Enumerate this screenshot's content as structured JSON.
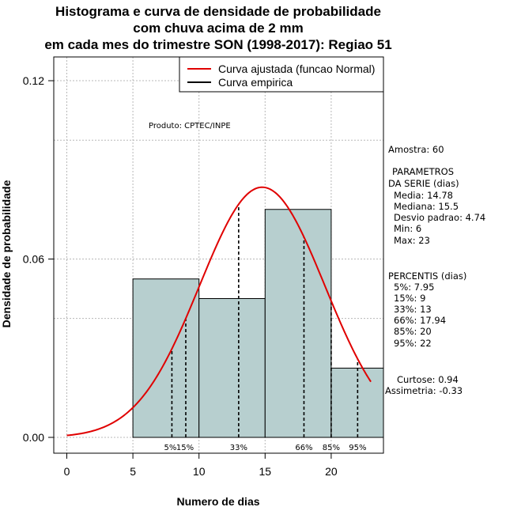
{
  "chart_data": {
    "type": "bar",
    "title_lines": [
      "Histograma e curva de densidade de probabilidade",
      "com chuva acima de 2 mm",
      "em cada mes do trimestre SON (1998-2017): Regiao 51"
    ],
    "xlabel": "Numero de dias",
    "ylabel": "Densidade de probabilidade",
    "xlim": [
      -1,
      24
    ],
    "ylim": [
      -0.005,
      0.13
    ],
    "xticks": [
      0,
      5,
      10,
      15,
      20
    ],
    "yticks": [
      0.0,
      0.06,
      0.12
    ],
    "ytick_labels": [
      "0.00",
      "0.06",
      "0.12"
    ],
    "grid_x": [
      0,
      5,
      10,
      15,
      20
    ],
    "grid_y": [
      0.0,
      0.04,
      0.06,
      0.1,
      0.12
    ],
    "bins": [
      {
        "from": 5,
        "to": 10,
        "density": 0.0533
      },
      {
        "from": 10,
        "to": 15,
        "density": 0.0467
      },
      {
        "from": 15,
        "to": 20,
        "density": 0.0767
      },
      {
        "from": 20,
        "to": 24,
        "density": 0.0233
      }
    ],
    "normal_fit": {
      "mean": 14.78,
      "sd": 4.74,
      "x_range": [
        0,
        23
      ]
    },
    "percentile_lines": [
      {
        "label": "5%",
        "x": 7.95
      },
      {
        "label": "15%",
        "x": 9
      },
      {
        "label": "33%",
        "x": 13
      },
      {
        "label": "66%",
        "x": 17.94
      },
      {
        "label": "85%",
        "x": 20
      },
      {
        "label": "95%",
        "x": 22
      }
    ],
    "legend": [
      {
        "label": "Curva ajustada (funcao Normal)",
        "color": "#e00000"
      },
      {
        "label": "Curva empirica",
        "color": "#000000"
      }
    ],
    "product_label": "Produto: CPTEC/INPE",
    "colors": {
      "bar_fill": "#b7cfcf",
      "curve": "#e00000",
      "grid": "#b8b8b8"
    }
  },
  "stats_panel": {
    "amostra": "Amostra: 60",
    "params_title_1": "PARAMETROS",
    "params_title_2": "DA SERIE (dias)",
    "media": "Media: 14.78",
    "mediana": "Mediana: 15.5",
    "desvio": "Desvio padrao: 4.74",
    "min": "Min: 6",
    "max": "Max: 23",
    "percents_title": "PERCENTIS (dias)",
    "p5": "5%: 7.95",
    "p15": "15%: 9",
    "p33": "33%: 13",
    "p66": "66%: 17.94",
    "p85": "85%: 20",
    "p95": "95%: 22",
    "curtose": "Curtose: 0.94",
    "assimetria": "Assimetria: -0.33"
  }
}
